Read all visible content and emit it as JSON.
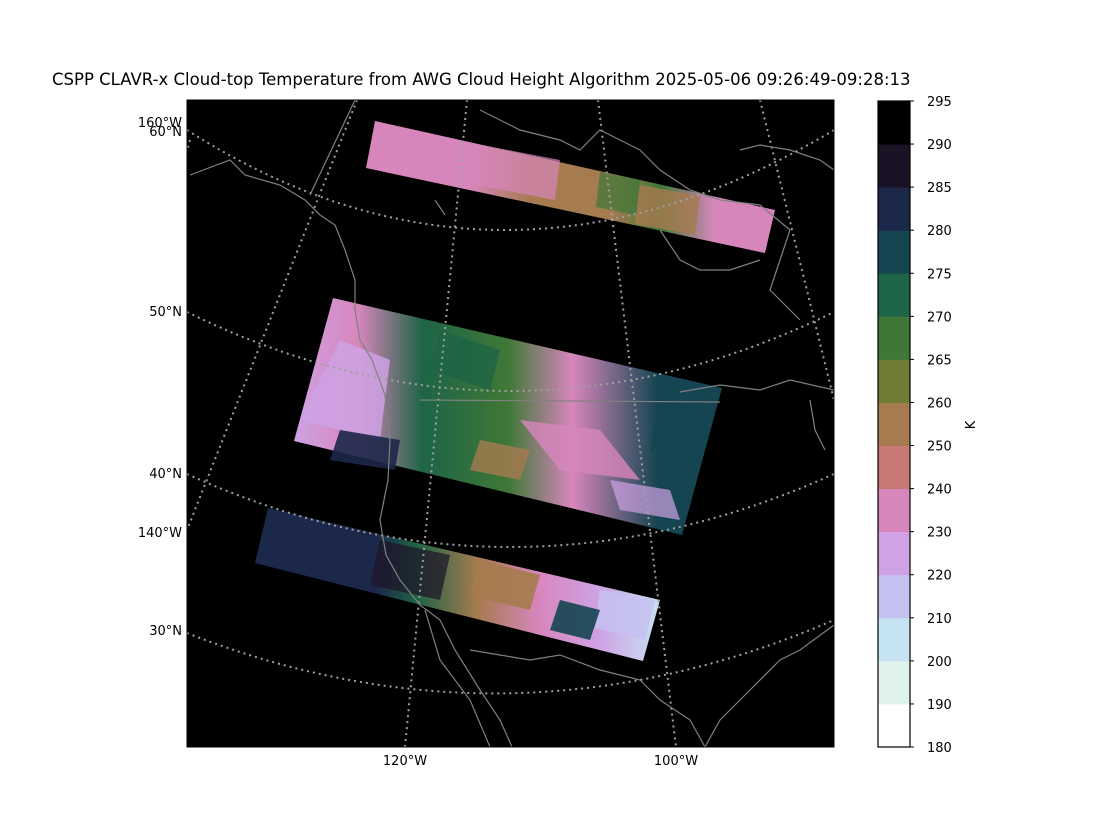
{
  "title": "CSPP CLAVR-x Cloud-top Temperature from AWG Cloud Height Algorithm 2025-05-06 09:26:49-09:28:13",
  "map": {
    "projection": "lambert-conformal",
    "background": "#000000",
    "coastline_color": "#808080",
    "graticule_style": "dotted",
    "lat_labels": [
      "60°N",
      "50°N",
      "40°N",
      "30°N"
    ],
    "lon_labels_left": [
      "160°W",
      "140°W"
    ],
    "lon_labels_bottom": [
      "120°W",
      "100°W"
    ]
  },
  "colorbar": {
    "label": "K",
    "ticks": [
      "180",
      "190",
      "200",
      "210",
      "220",
      "230",
      "240",
      "250",
      "260",
      "265",
      "270",
      "275",
      "280",
      "285",
      "290",
      "295"
    ],
    "colors": [
      "#ffffff",
      "#dff3ec",
      "#c6e3f3",
      "#c5c1f1",
      "#cea2e4",
      "#d786bc",
      "#c87777",
      "#a67b4f",
      "#717c34",
      "#3f7836",
      "#1e6446",
      "#144550",
      "#1c2849",
      "#1c1226",
      "#000000"
    ]
  },
  "swaths": [
    {
      "name": "north-swath"
    },
    {
      "name": "middle-swath"
    },
    {
      "name": "south-swath"
    }
  ]
}
